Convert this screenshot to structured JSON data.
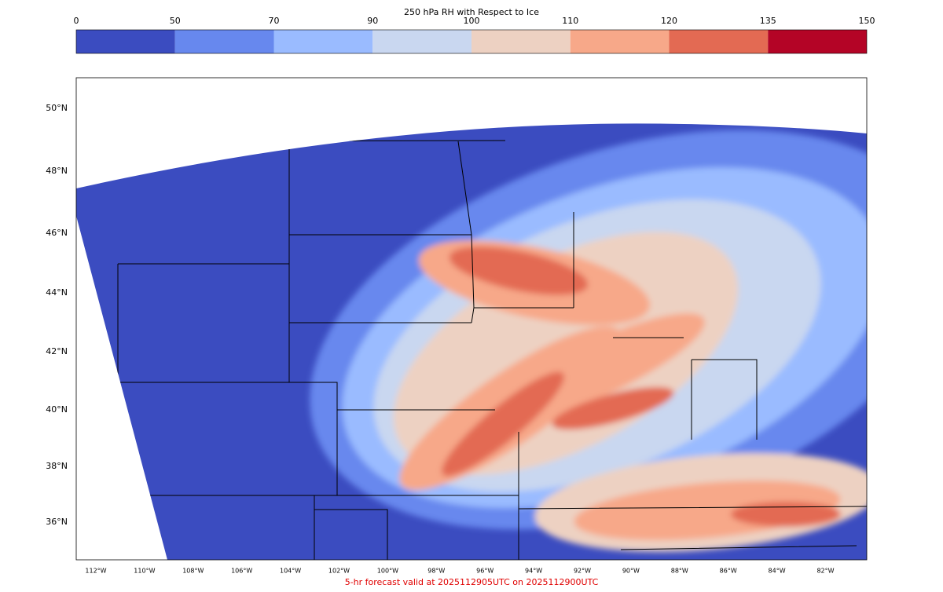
{
  "colorbar": {
    "title": "250 hPa RH with Respect to Ice",
    "levels": [
      0,
      50,
      70,
      90,
      100,
      110,
      120,
      135,
      150
    ],
    "colors": [
      "#3b4cc0",
      "#6788ee",
      "#9abbff",
      "#c9d7f0",
      "#edd1c2",
      "#f7a889",
      "#e36a53",
      "#b40426"
    ]
  },
  "map": {
    "lat_labels": [
      "50°N",
      "48°N",
      "46°N",
      "44°N",
      "42°N",
      "40°N",
      "38°N",
      "36°N"
    ],
    "lon_labels": [
      "112°W",
      "110°W",
      "108°W",
      "106°W",
      "104°W",
      "102°W",
      "100°W",
      "98°W",
      "96°W",
      "94°W",
      "92°W",
      "90°W",
      "88°W",
      "86°W",
      "84°W",
      "82°W"
    ]
  },
  "footer": "5-hr forecast valid at 2025112905UTC on 2025112900UTC"
}
